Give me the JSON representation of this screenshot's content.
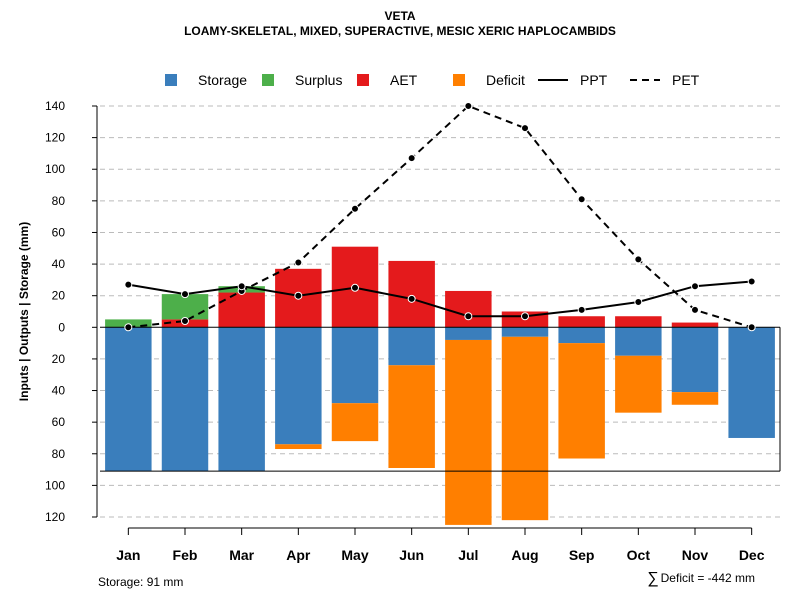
{
  "title": {
    "line1": "VETA",
    "line2": "LOAMY-SKELETAL, MIXED, SUPERACTIVE, MESIC XERIC HAPLOCAMBIDS"
  },
  "footer": {
    "storage": "Storage: 91 mm",
    "deficit_symbol": "∑",
    "deficit": "Deficit = -442 mm"
  },
  "colors": {
    "storage": "#3A7EBC",
    "surplus": "#4DAF4A",
    "aet": "#E41A1C",
    "deficit": "#FF7F00",
    "ppt": "#000000",
    "pet": "#000000",
    "grid": "#bbbbbb"
  },
  "chart_data": {
    "type": "bar",
    "title": "VETA",
    "subtitle": "LOAMY-SKELETAL, MIXED, SUPERACTIVE, MESIC XERIC HAPLOCAMBIDS",
    "xlabel": "",
    "ylabel": "Inputs | Outputs | Storage    (mm)",
    "ylim": [
      -120,
      140
    ],
    "yticks": [
      140,
      120,
      100,
      80,
      60,
      40,
      20,
      0,
      -20,
      -40,
      -60,
      -80,
      -100,
      -120
    ],
    "ytick_labels": [
      "140",
      "120",
      "100",
      "80",
      "60",
      "40",
      "20",
      "0",
      "20",
      "40",
      "60",
      "80",
      "100",
      "120"
    ],
    "grid": true,
    "categories": [
      "Jan",
      "Feb",
      "Mar",
      "Apr",
      "May",
      "Jun",
      "Jul",
      "Aug",
      "Sep",
      "Oct",
      "Nov",
      "Dec"
    ],
    "legend": [
      "Storage",
      "Surplus",
      "AET",
      "Deficit",
      "PPT",
      "PET"
    ],
    "legend_position": "top",
    "series": [
      {
        "name": "Storage",
        "kind": "bar",
        "values": [
          91,
          91,
          91,
          74,
          48,
          24,
          8,
          6,
          10,
          18,
          41,
          70
        ]
      },
      {
        "name": "Surplus",
        "kind": "bar",
        "values": [
          5,
          16,
          4,
          0,
          0,
          0,
          0,
          0,
          0,
          0,
          0,
          0
        ]
      },
      {
        "name": "AET",
        "kind": "bar",
        "values": [
          0,
          5,
          22,
          37,
          51,
          42,
          23,
          10,
          7,
          7,
          3,
          0
        ]
      },
      {
        "name": "Deficit",
        "kind": "bar",
        "values": [
          0,
          0,
          0,
          3,
          24,
          65,
          117,
          116,
          73,
          36,
          8,
          0
        ]
      },
      {
        "name": "PPT",
        "kind": "line",
        "style": "solid",
        "values": [
          27,
          21,
          26,
          20,
          25,
          18,
          7,
          7,
          11,
          16,
          26,
          29
        ]
      },
      {
        "name": "PET",
        "kind": "line",
        "style": "dashed",
        "values": [
          0,
          4,
          23,
          41,
          75,
          107,
          140,
          126,
          81,
          43,
          11,
          0
        ]
      }
    ],
    "reference_line": {
      "name": "Storage capacity",
      "value": -91
    }
  }
}
